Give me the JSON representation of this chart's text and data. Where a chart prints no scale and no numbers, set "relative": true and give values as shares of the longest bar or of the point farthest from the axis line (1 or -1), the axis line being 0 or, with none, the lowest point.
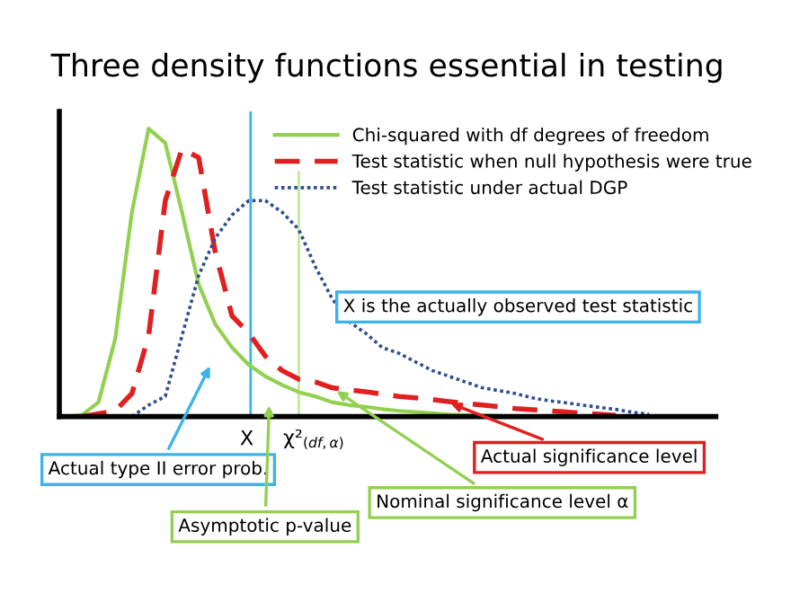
{
  "chart_data": {
    "type": "line",
    "title": "Three density functions essential in testing",
    "relative": true,
    "legend": "top right",
    "categories": [
      null,
      null,
      null,
      null,
      null,
      null,
      null,
      null,
      null,
      null,
      null,
      null,
      null,
      null,
      null,
      null,
      null,
      null,
      null,
      null,
      null,
      null,
      null,
      null,
      null,
      null,
      null,
      null,
      null,
      null,
      null,
      null,
      null,
      null,
      null,
      null,
      null,
      null,
      null,
      null
    ],
    "series": [
      {
        "name": "Chi-squared with df degrees of freedom",
        "color": "#92d050",
        "line_style": "solid",
        "values": [
          0,
          0.005,
          0.05,
          0.27,
          0.71,
          1,
          0.95,
          0.71,
          0.46,
          0.32,
          0.24,
          0.18,
          0.14,
          0.11,
          0.085,
          0.07,
          0.05,
          0.04,
          0.034,
          0.026,
          0.02,
          0.016,
          0.012,
          0.007,
          0.005,
          0.004,
          0.003,
          null,
          null,
          null,
          null,
          null,
          null,
          null,
          null,
          null,
          null,
          null,
          null,
          null
        ]
      },
      {
        "name": "Test statistic when null hypothesis were true",
        "color": "#e02020",
        "line_style": "dashed",
        "values": [
          null,
          0,
          0.01,
          0.02,
          0.08,
          0.28,
          0.75,
          0.93,
          0.9,
          0.57,
          0.35,
          0.29,
          0.21,
          0.16,
          0.13,
          0.12,
          0.1,
          0.093,
          0.086,
          0.078,
          0.07,
          0.065,
          0.059,
          0.052,
          0.046,
          0.04,
          0.034,
          0.028,
          0.024,
          0.02,
          0.016,
          0.012,
          0.008,
          0.004,
          null,
          null,
          null,
          null,
          null,
          null
        ]
      },
      {
        "name": "Test statistic under actual DGP",
        "color": "#2f4f8f",
        "line_style": "dotted",
        "values": [
          null,
          null,
          null,
          null,
          0,
          0.04,
          0.07,
          0.28,
          0.49,
          0.62,
          0.7,
          0.75,
          0.75,
          0.71,
          0.65,
          0.52,
          0.41,
          0.33,
          0.29,
          0.24,
          0.22,
          0.19,
          0.16,
          0.14,
          0.12,
          0.1,
          0.09,
          0.08,
          0.065,
          0.055,
          0.048,
          0.04,
          0.032,
          0.025,
          0.015,
          0.008,
          null,
          null,
          null,
          null
        ]
      }
    ],
    "annotations": [
      "X is the actually observed test statistic",
      "Actual type II error prob.",
      "Asymptotic p-value",
      "Nominal significance level α",
      "Actual significance level",
      "X",
      "χ²$_{(df,α)}$"
    ]
  }
}
